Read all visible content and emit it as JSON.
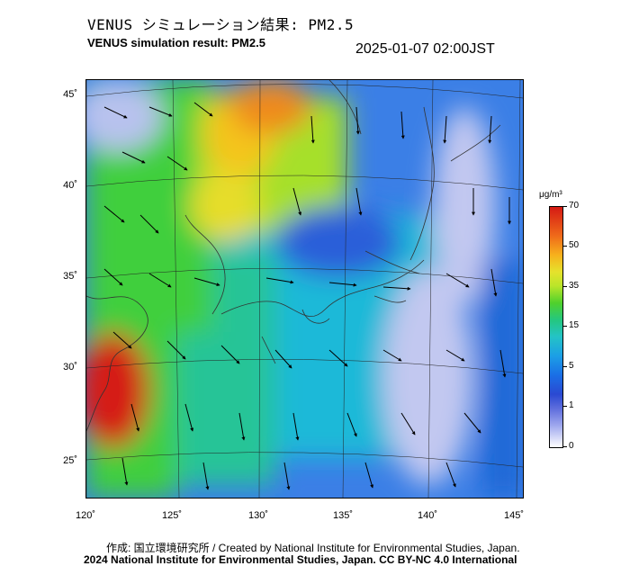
{
  "header": {
    "title_jp": "VENUS シミュレーション結果: PM2.5",
    "title_en": "VENUS simulation result: PM2.5",
    "timestamp": "2025-01-07 02:00JST"
  },
  "map": {
    "latitude_labels": [
      "45˚",
      "40˚",
      "35˚",
      "30˚",
      "25˚"
    ],
    "longitude_labels": [
      "120˚",
      "125˚",
      "130˚",
      "135˚",
      "140˚",
      "145˚"
    ],
    "lat_range": [
      23,
      46
    ],
    "lon_range": [
      120,
      145
    ]
  },
  "colorbar": {
    "unit": "μg/m³",
    "ticks": [
      "70",
      "50",
      "35",
      "15",
      "5",
      "1",
      "0"
    ],
    "colors": {
      "high": "#d51a14",
      "orange": "#f7b11c",
      "green": "#4fd12c",
      "cyan": "#24c3c6",
      "blue": "#1a6fe6",
      "low": "#ffffff"
    }
  },
  "footer": {
    "credit": "作成: 国立環境研究所 / Created by National Institute for Environmental Studies, Japan.",
    "copyright": "2024 National Institute for Environmental Studies, Japan. CC BY-NC 4.0 International"
  }
}
